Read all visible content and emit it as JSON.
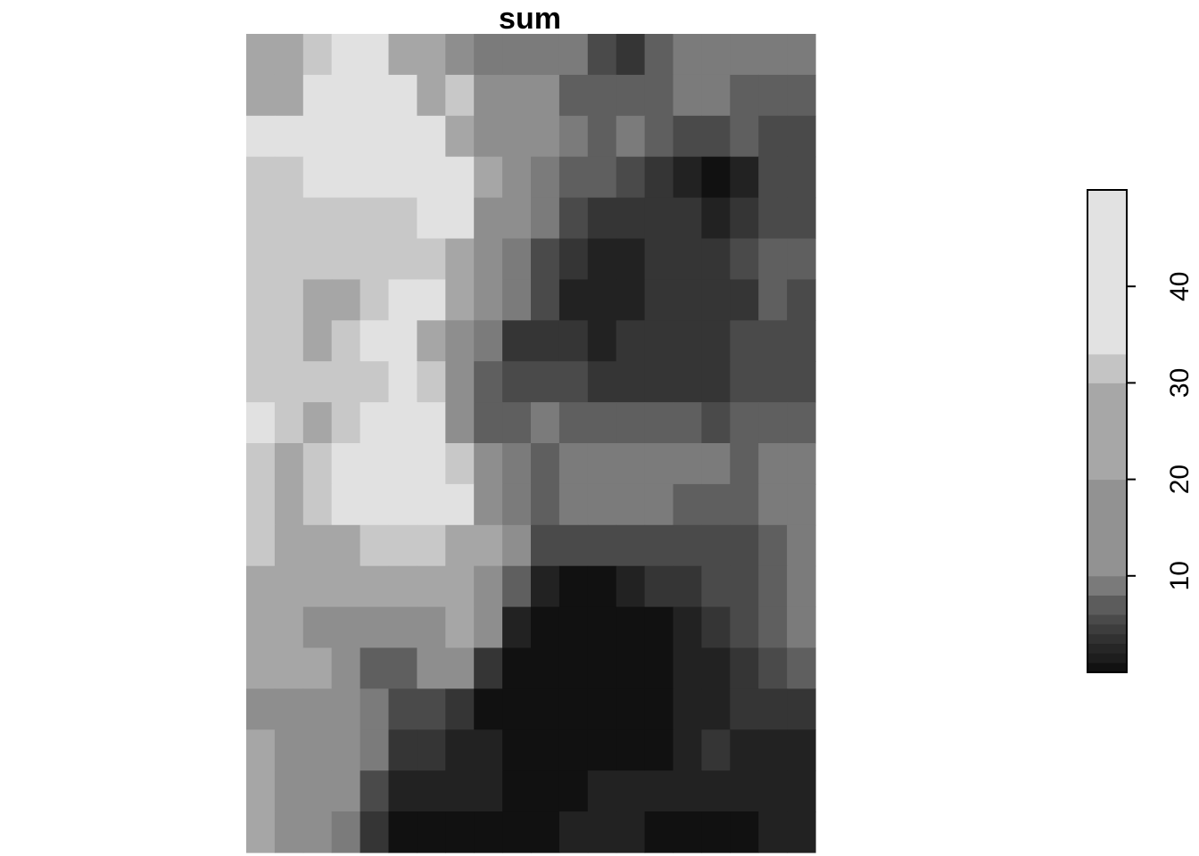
{
  "chart_data": {
    "type": "heatmap",
    "title": "sum",
    "colormap": "greyscale",
    "legend": {
      "position": "right",
      "type": "colorbar",
      "breaks": [
        0,
        1,
        2,
        3,
        4,
        5,
        6,
        8,
        10,
        20,
        30,
        33,
        50
      ],
      "colors": [
        "#111111",
        "#1d1d1d",
        "#262626",
        "#313131",
        "#3d3d3d",
        "#4a4a4a",
        "#5c5c5c",
        "#7a7a7a",
        "#929292",
        "#a7a7a7",
        "#c4c4c4",
        "#e2e2e2"
      ],
      "tick_values": [
        10,
        20,
        30,
        40
      ],
      "tick_labels": [
        "10",
        "20",
        "30",
        "40"
      ]
    },
    "grid": [
      [
        "#a6a6a6",
        "#a6a6a6",
        "#c8c8c8",
        "#e1e1e1",
        "#e1e1e1",
        "#a6a6a6",
        "#a6a6a6",
        "#8e8e8e",
        "#7b7b7b",
        "#7b7b7b",
        "#7b7b7b",
        "#7b7b7b",
        "#4a4a4a",
        "#353535",
        "#5f5f5f",
        "#7b7b7b",
        "#7b7b7b",
        "#7b7b7b",
        "#7b7b7b",
        "#7b7b7b"
      ],
      [
        "#a6a6a6",
        "#a6a6a6",
        "#e1e1e1",
        "#e1e1e1",
        "#e1e1e1",
        "#e1e1e1",
        "#a6a6a6",
        "#c8c8c8",
        "#8e8e8e",
        "#8e8e8e",
        "#8e8e8e",
        "#5f5f5f",
        "#5f5f5f",
        "#5f5f5f",
        "#5f5f5f",
        "#7b7b7b",
        "#7b7b7b",
        "#5f5f5f",
        "#5f5f5f",
        "#5f5f5f"
      ],
      [
        "#e1e1e1",
        "#e1e1e1",
        "#e1e1e1",
        "#e1e1e1",
        "#e1e1e1",
        "#e1e1e1",
        "#e1e1e1",
        "#a6a6a6",
        "#8e8e8e",
        "#8e8e8e",
        "#8e8e8e",
        "#7b7b7b",
        "#5f5f5f",
        "#7b7b7b",
        "#5f5f5f",
        "#4a4a4a",
        "#4a4a4a",
        "#5f5f5f",
        "#4a4a4a",
        "#4a4a4a"
      ],
      [
        "#c8c8c8",
        "#c8c8c8",
        "#e1e1e1",
        "#e1e1e1",
        "#e1e1e1",
        "#e1e1e1",
        "#e1e1e1",
        "#e1e1e1",
        "#a6a6a6",
        "#8e8e8e",
        "#7b7b7b",
        "#5f5f5f",
        "#5f5f5f",
        "#4a4a4a",
        "#353535",
        "#222222",
        "#111111",
        "#222222",
        "#4a4a4a",
        "#4a4a4a"
      ],
      [
        "#c8c8c8",
        "#c8c8c8",
        "#c8c8c8",
        "#c8c8c8",
        "#c8c8c8",
        "#c8c8c8",
        "#e1e1e1",
        "#e1e1e1",
        "#8e8e8e",
        "#8e8e8e",
        "#7b7b7b",
        "#4a4a4a",
        "#353535",
        "#353535",
        "#353535",
        "#353535",
        "#222222",
        "#353535",
        "#4a4a4a",
        "#4a4a4a"
      ],
      [
        "#c8c8c8",
        "#c8c8c8",
        "#c8c8c8",
        "#c8c8c8",
        "#c8c8c8",
        "#c8c8c8",
        "#c8c8c8",
        "#a6a6a6",
        "#8e8e8e",
        "#7b7b7b",
        "#4a4a4a",
        "#353535",
        "#222222",
        "#222222",
        "#353535",
        "#353535",
        "#353535",
        "#4a4a4a",
        "#5f5f5f",
        "#5f5f5f"
      ],
      [
        "#c8c8c8",
        "#c8c8c8",
        "#a6a6a6",
        "#a6a6a6",
        "#c8c8c8",
        "#e1e1e1",
        "#e1e1e1",
        "#a6a6a6",
        "#8e8e8e",
        "#7b7b7b",
        "#4a4a4a",
        "#222222",
        "#222222",
        "#222222",
        "#353535",
        "#353535",
        "#353535",
        "#353535",
        "#5f5f5f",
        "#4a4a4a"
      ],
      [
        "#c8c8c8",
        "#c8c8c8",
        "#a6a6a6",
        "#c8c8c8",
        "#e1e1e1",
        "#e1e1e1",
        "#a6a6a6",
        "#8e8e8e",
        "#7b7b7b",
        "#353535",
        "#353535",
        "#353535",
        "#222222",
        "#353535",
        "#353535",
        "#353535",
        "#353535",
        "#4a4a4a",
        "#4a4a4a",
        "#4a4a4a"
      ],
      [
        "#c8c8c8",
        "#c8c8c8",
        "#c8c8c8",
        "#c8c8c8",
        "#c8c8c8",
        "#e1e1e1",
        "#c8c8c8",
        "#8e8e8e",
        "#5f5f5f",
        "#4a4a4a",
        "#4a4a4a",
        "#4a4a4a",
        "#353535",
        "#353535",
        "#353535",
        "#353535",
        "#353535",
        "#4a4a4a",
        "#4a4a4a",
        "#4a4a4a"
      ],
      [
        "#e1e1e1",
        "#c8c8c8",
        "#a6a6a6",
        "#c8c8c8",
        "#e1e1e1",
        "#e1e1e1",
        "#e1e1e1",
        "#8e8e8e",
        "#5f5f5f",
        "#5f5f5f",
        "#7b7b7b",
        "#5f5f5f",
        "#5f5f5f",
        "#5f5f5f",
        "#5f5f5f",
        "#5f5f5f",
        "#4a4a4a",
        "#5f5f5f",
        "#5f5f5f",
        "#5f5f5f"
      ],
      [
        "#c8c8c8",
        "#a6a6a6",
        "#c8c8c8",
        "#e1e1e1",
        "#e1e1e1",
        "#e1e1e1",
        "#e1e1e1",
        "#c8c8c8",
        "#8e8e8e",
        "#7b7b7b",
        "#5f5f5f",
        "#7b7b7b",
        "#7b7b7b",
        "#7b7b7b",
        "#7b7b7b",
        "#7b7b7b",
        "#7b7b7b",
        "#5f5f5f",
        "#7b7b7b",
        "#7b7b7b"
      ],
      [
        "#c8c8c8",
        "#a6a6a6",
        "#c8c8c8",
        "#e1e1e1",
        "#e1e1e1",
        "#e1e1e1",
        "#e1e1e1",
        "#e1e1e1",
        "#8e8e8e",
        "#7b7b7b",
        "#5f5f5f",
        "#7b7b7b",
        "#7b7b7b",
        "#7b7b7b",
        "#7b7b7b",
        "#5f5f5f",
        "#5f5f5f",
        "#5f5f5f",
        "#7b7b7b",
        "#7b7b7b"
      ],
      [
        "#c8c8c8",
        "#a6a6a6",
        "#a6a6a6",
        "#a6a6a6",
        "#c8c8c8",
        "#c8c8c8",
        "#c8c8c8",
        "#a6a6a6",
        "#a6a6a6",
        "#8e8e8e",
        "#4a4a4a",
        "#4a4a4a",
        "#4a4a4a",
        "#4a4a4a",
        "#4a4a4a",
        "#4a4a4a",
        "#4a4a4a",
        "#4a4a4a",
        "#5f5f5f",
        "#7b7b7b"
      ],
      [
        "#a6a6a6",
        "#a6a6a6",
        "#a6a6a6",
        "#a6a6a6",
        "#a6a6a6",
        "#a6a6a6",
        "#a6a6a6",
        "#a6a6a6",
        "#8e8e8e",
        "#5f5f5f",
        "#222222",
        "#111111",
        "#111111",
        "#222222",
        "#353535",
        "#353535",
        "#4a4a4a",
        "#4a4a4a",
        "#5f5f5f",
        "#7b7b7b"
      ],
      [
        "#a6a6a6",
        "#a6a6a6",
        "#8e8e8e",
        "#8e8e8e",
        "#8e8e8e",
        "#8e8e8e",
        "#8e8e8e",
        "#a6a6a6",
        "#8e8e8e",
        "#222222",
        "#111111",
        "#111111",
        "#111111",
        "#111111",
        "#111111",
        "#222222",
        "#353535",
        "#4a4a4a",
        "#5f5f5f",
        "#7b7b7b"
      ],
      [
        "#a6a6a6",
        "#a6a6a6",
        "#a6a6a6",
        "#8e8e8e",
        "#5f5f5f",
        "#5f5f5f",
        "#8e8e8e",
        "#8e8e8e",
        "#353535",
        "#111111",
        "#111111",
        "#111111",
        "#111111",
        "#111111",
        "#111111",
        "#222222",
        "#222222",
        "#353535",
        "#4a4a4a",
        "#5f5f5f"
      ],
      [
        "#8e8e8e",
        "#8e8e8e",
        "#8e8e8e",
        "#8e8e8e",
        "#7b7b7b",
        "#4a4a4a",
        "#4a4a4a",
        "#353535",
        "#111111",
        "#111111",
        "#111111",
        "#111111",
        "#111111",
        "#111111",
        "#111111",
        "#222222",
        "#222222",
        "#353535",
        "#353535",
        "#353535"
      ],
      [
        "#a6a6a6",
        "#8e8e8e",
        "#8e8e8e",
        "#8e8e8e",
        "#7b7b7b",
        "#353535",
        "#353535",
        "#222222",
        "#222222",
        "#111111",
        "#111111",
        "#111111",
        "#111111",
        "#111111",
        "#111111",
        "#222222",
        "#353535",
        "#222222",
        "#222222",
        "#222222"
      ],
      [
        "#a6a6a6",
        "#8e8e8e",
        "#8e8e8e",
        "#8e8e8e",
        "#4a4a4a",
        "#222222",
        "#222222",
        "#222222",
        "#222222",
        "#111111",
        "#111111",
        "#111111",
        "#222222",
        "#222222",
        "#222222",
        "#222222",
        "#222222",
        "#222222",
        "#222222",
        "#222222"
      ],
      [
        "#a6a6a6",
        "#8e8e8e",
        "#8e8e8e",
        "#7b7b7b",
        "#353535",
        "#111111",
        "#111111",
        "#111111",
        "#111111",
        "#111111",
        "#111111",
        "#222222",
        "#222222",
        "#222222",
        "#111111",
        "#111111",
        "#111111",
        "#111111",
        "#222222",
        "#222222"
      ]
    ]
  }
}
